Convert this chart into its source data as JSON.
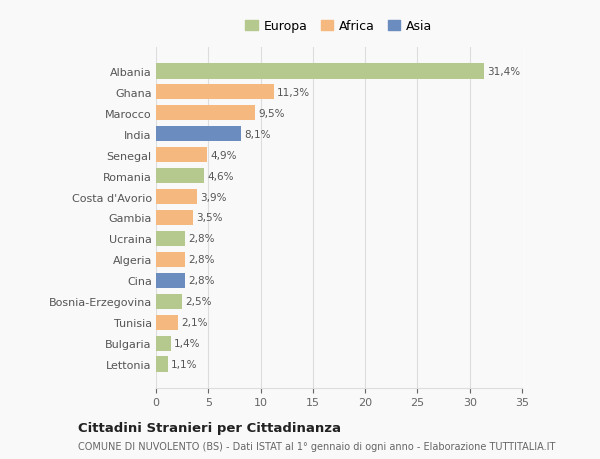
{
  "categories": [
    "Lettonia",
    "Bulgaria",
    "Tunisia",
    "Bosnia-Erzegovina",
    "Cina",
    "Algeria",
    "Ucraina",
    "Gambia",
    "Costa d'Avorio",
    "Romania",
    "Senegal",
    "India",
    "Marocco",
    "Ghana",
    "Albania"
  ],
  "values": [
    1.1,
    1.4,
    2.1,
    2.5,
    2.8,
    2.8,
    2.8,
    3.5,
    3.9,
    4.6,
    4.9,
    8.1,
    9.5,
    11.3,
    31.4
  ],
  "labels": [
    "1,1%",
    "1,4%",
    "2,1%",
    "2,5%",
    "2,8%",
    "2,8%",
    "2,8%",
    "3,5%",
    "3,9%",
    "4,6%",
    "4,9%",
    "8,1%",
    "9,5%",
    "11,3%",
    "31,4%"
  ],
  "colors": [
    "#b5c98e",
    "#b5c98e",
    "#f5b97f",
    "#b5c98e",
    "#6b8cbf",
    "#f5b97f",
    "#b5c98e",
    "#f5b97f",
    "#f5b97f",
    "#b5c98e",
    "#f5b97f",
    "#6b8cbf",
    "#f5b97f",
    "#f5b97f",
    "#b5c98e"
  ],
  "legend_labels": [
    "Europa",
    "Africa",
    "Asia"
  ],
  "legend_colors": [
    "#b5c98e",
    "#f5b97f",
    "#6b8cbf"
  ],
  "xlim": [
    0,
    35
  ],
  "xticks": [
    0,
    5,
    10,
    15,
    20,
    25,
    30,
    35
  ],
  "title1": "Cittadini Stranieri per Cittadinanza",
  "title2": "COMUNE DI NUVOLENTO (BS) - Dati ISTAT al 1° gennaio di ogni anno - Elaborazione TUTTITALIA.IT",
  "background_color": "#f9f9f9",
  "grid_color": "#dddddd",
  "bar_height": 0.75
}
